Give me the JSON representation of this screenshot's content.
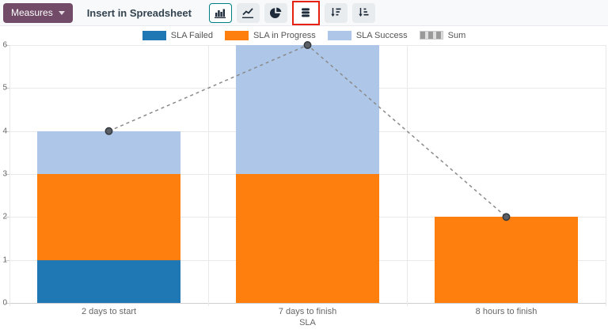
{
  "toolbar": {
    "measures_label": "Measures",
    "insert_spreadsheet_label": "Insert in Spreadsheet",
    "chart_type_buttons": [
      "bar-chart",
      "line-chart",
      "pie-chart",
      "stacked",
      "sort-descending",
      "sort-ascending"
    ],
    "active_button": "bar-chart",
    "highlighted_button": "stacked",
    "colors": {
      "measures_bg": "#714b67",
      "active_border": "#017e84",
      "highlight_red": "#e8210f"
    }
  },
  "chart_data": {
    "type": "bar",
    "stacked": true,
    "categories": [
      "2 days to start",
      "7 days to finish",
      "8 hours to finish"
    ],
    "series": [
      {
        "name": "SLA Failed",
        "type": "bar",
        "color": "#1f77b4",
        "values": [
          1,
          0,
          0
        ]
      },
      {
        "name": "SLA in Progress",
        "type": "bar",
        "color": "#ff7f0e",
        "values": [
          2,
          3,
          2
        ]
      },
      {
        "name": "SLA Success",
        "type": "bar",
        "color": "#aec7e8",
        "values": [
          1,
          3,
          0
        ]
      },
      {
        "name": "Sum",
        "type": "line",
        "color": "#8a8a8a",
        "dashed": true,
        "marker_fill": "#5b6066",
        "marker_stroke": "#33383d",
        "values": [
          4,
          6,
          2
        ]
      }
    ],
    "xlabel": "SLA",
    "ylabel": "",
    "ylim": [
      0,
      6
    ],
    "yticks": [
      0,
      1,
      2,
      3,
      4,
      5,
      6
    ],
    "grid": true,
    "legend_position": "top"
  }
}
